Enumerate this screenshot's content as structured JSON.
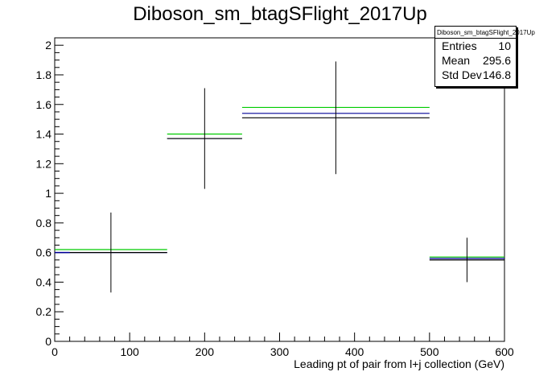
{
  "chart_data": {
    "type": "histogram",
    "title": "Diboson_sm_btagSFlight_2017Up",
    "xlabel": "Leading pt of pair from l+j collection (GeV)",
    "ylabel": "",
    "xlim": [
      0,
      600
    ],
    "ylim": [
      0,
      2.05
    ],
    "x_ticks": [
      0,
      100,
      200,
      300,
      400,
      500,
      600
    ],
    "y_ticks": [
      0,
      0.2,
      0.4,
      0.6,
      0.8,
      1,
      1.2,
      1.4,
      1.6,
      1.8,
      2
    ],
    "bins": [
      [
        0,
        150
      ],
      [
        150,
        250
      ],
      [
        250,
        500
      ],
      [
        500,
        600
      ]
    ],
    "centers": [
      75,
      200,
      375,
      550
    ],
    "series": [
      {
        "color": "#00cc00",
        "values": [
          0.62,
          1.4,
          1.58,
          0.57
        ]
      },
      {
        "color": "#000099",
        "values": [
          0.6,
          1.37,
          1.54,
          0.56
        ]
      },
      {
        "color": "#000000",
        "values": [
          0.6,
          1.37,
          1.51,
          0.55
        ],
        "errors": [
          0.27,
          0.34,
          0.38,
          0.15
        ]
      }
    ],
    "short_marker": {
      "x": [
        0,
        20
      ],
      "y": 0.6,
      "color": "#000099"
    },
    "grid": false,
    "legend": "none"
  },
  "stats": {
    "name": "Diboson_sm_btagSFlight_2017Up",
    "rows": [
      {
        "label": "Entries",
        "value": "10"
      },
      {
        "label": "Mean",
        "value": "295.6"
      },
      {
        "label": "Std Dev",
        "value": "146.8"
      }
    ]
  }
}
